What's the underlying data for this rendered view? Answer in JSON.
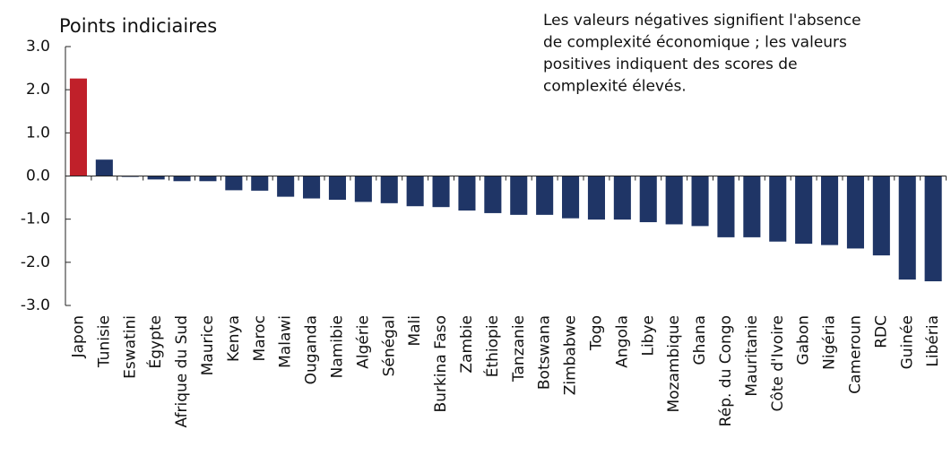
{
  "chart_data": {
    "type": "bar",
    "title": "Points indiciaires",
    "annotation": [
      "Les valeurs négatives signifient l'absence",
      "de complexité économique ; les valeurs",
      "positives indiquent des scores de",
      "complexité élevés."
    ],
    "categories": [
      "Japon",
      "Tunisie",
      "Eswatini",
      "Égypte",
      "Afrique du Sud",
      "Maurice",
      "Kenya",
      "Maroc",
      "Malawi",
      "Ouganda",
      "Namibie",
      "Algérie",
      "Sénégal",
      "Mali",
      "Burkina Faso",
      "Zambie",
      "Éthiopie",
      "Tanzanie",
      "Botswana",
      "Zimbabwe",
      "Togo",
      "Angola",
      "Libye",
      "Mozambique",
      "Ghana",
      "Rép. du Congo",
      "Mauritanie",
      "Côte d'Ivoire",
      "Gabon",
      "Nigéria",
      "Cameroun",
      "RDC",
      "Guinée",
      "Libéria"
    ],
    "values": [
      2.26,
      0.38,
      -0.02,
      -0.08,
      -0.12,
      -0.12,
      -0.33,
      -0.34,
      -0.48,
      -0.52,
      -0.55,
      -0.6,
      -0.63,
      -0.7,
      -0.72,
      -0.8,
      -0.86,
      -0.9,
      -0.9,
      -0.98,
      -1.01,
      -1.01,
      -1.07,
      -1.12,
      -1.16,
      -1.42,
      -1.42,
      -1.52,
      -1.57,
      -1.6,
      -1.68,
      -1.84,
      -2.4,
      -2.44
    ],
    "colors": [
      "#c0202a",
      "#1f3566",
      "#1f3566",
      "#1f3566",
      "#1f3566",
      "#1f3566",
      "#1f3566",
      "#1f3566",
      "#1f3566",
      "#1f3566",
      "#1f3566",
      "#1f3566",
      "#1f3566",
      "#1f3566",
      "#1f3566",
      "#1f3566",
      "#1f3566",
      "#1f3566",
      "#1f3566",
      "#1f3566",
      "#1f3566",
      "#1f3566",
      "#1f3566",
      "#1f3566",
      "#1f3566",
      "#1f3566",
      "#1f3566",
      "#1f3566",
      "#1f3566",
      "#1f3566",
      "#1f3566",
      "#1f3566",
      "#1f3566",
      "#1f3566"
    ],
    "ylim": [
      -3,
      3
    ],
    "yticks": [
      {
        "value": 3,
        "label": "3.0"
      },
      {
        "value": 2,
        "label": "2.0"
      },
      {
        "value": 1,
        "label": "1.0"
      },
      {
        "value": 0,
        "label": "0.0"
      },
      {
        "value": -1,
        "label": "-1.0"
      },
      {
        "value": -2,
        "label": "-2.0"
      },
      {
        "value": -3,
        "label": "-3.0"
      }
    ],
    "grid": false
  }
}
